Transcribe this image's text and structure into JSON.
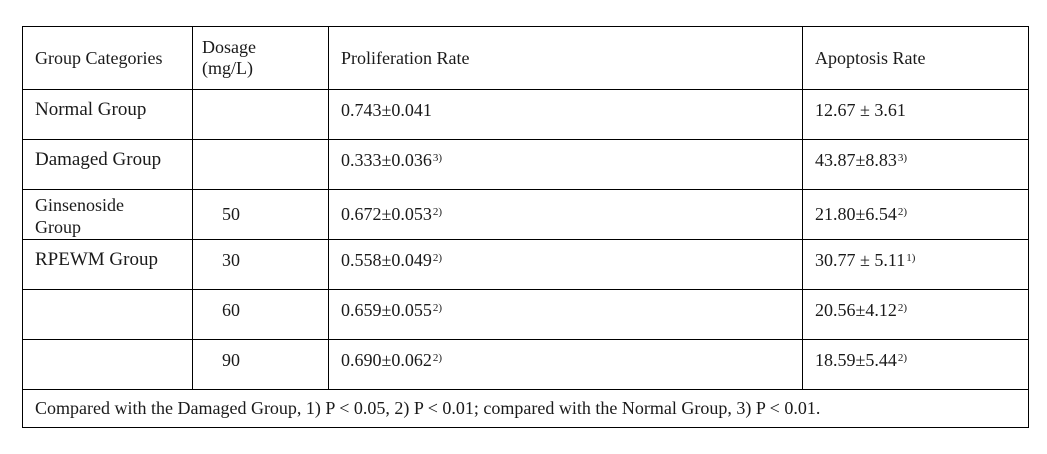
{
  "table": {
    "headers": {
      "group": "Group Categories",
      "dosage_line1": "Dosage",
      "dosage_line2": "(mg/L)",
      "proliferation": "Proliferation Rate",
      "apoptosis": "Apoptosis Rate"
    },
    "rows": [
      {
        "group": "Normal Group",
        "dosage": "",
        "proliferation": "0.743±0.041",
        "proliferation_note": "",
        "apoptosis": "12.67 ± 3.61",
        "apoptosis_note": ""
      },
      {
        "group": "Damaged Group",
        "dosage": "",
        "proliferation": "0.333±0.036",
        "proliferation_note": "3)",
        "apoptosis": "43.87±8.83",
        "apoptosis_note": "3)"
      },
      {
        "group_line1": "Ginsenoside",
        "group_line2": "Group",
        "dosage": "50",
        "proliferation": "0.672±0.053",
        "proliferation_note": "2)",
        "apoptosis": "21.80±6.54",
        "apoptosis_note": "2)"
      },
      {
        "group": "RPEWM Group",
        "dosage": "30",
        "proliferation": "0.558±0.049",
        "proliferation_note": "2)",
        "apoptosis": "30.77 ± 5.11",
        "apoptosis_note": "1)"
      },
      {
        "group": "",
        "dosage": "60",
        "proliferation": "0.659±0.055",
        "proliferation_note": "2)",
        "apoptosis": "20.56±4.12",
        "apoptosis_note": "2)"
      },
      {
        "group": "",
        "dosage": "90",
        "proliferation": "0.690±0.062",
        "proliferation_note": "2)",
        "apoptosis": "18.59±5.44",
        "apoptosis_note": "2)"
      }
    ],
    "footnote": "Compared with the Damaged Group, 1) P < 0.05, 2) P < 0.01; compared with the Normal Group, 3) P < 0.01."
  }
}
